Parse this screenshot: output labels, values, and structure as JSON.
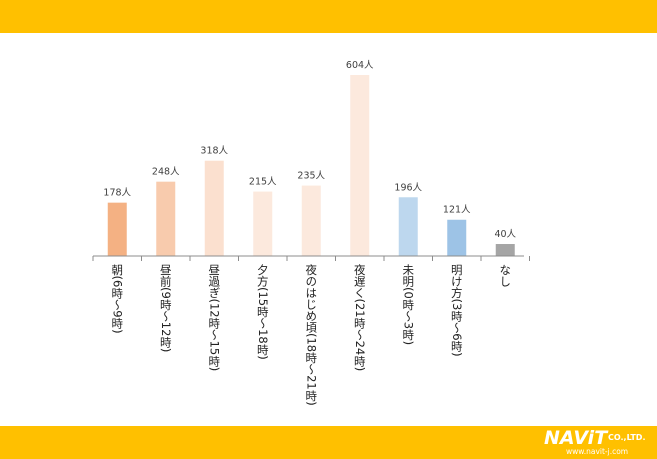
{
  "chart_data": {
    "type": "bar",
    "categories": [
      "朝(6時〜9時)",
      "昼前(9時〜12時)",
      "昼過ぎ(12時〜15時)",
      "夕方(15時〜18時)",
      "夜のはじめ頃(18時〜21時)",
      "夜遅く(21時〜24時)",
      "未明(0時〜3時)",
      "明け方(3時〜6時)",
      "なし"
    ],
    "values": [
      178,
      248,
      318,
      215,
      235,
      604,
      196,
      121,
      40
    ],
    "value_labels": [
      "178人",
      "248人",
      "318人",
      "215人",
      "235人",
      "604人",
      "196人",
      "121人",
      "40人"
    ],
    "colors": [
      "#F4B183",
      "#F8CBAD",
      "#FBE0CF",
      "#FCE9DD",
      "#FCE9DD",
      "#FCE9DD",
      "#BDD7EE",
      "#9DC3E6",
      "#A5A5A5"
    ],
    "title": "",
    "xlabel": "",
    "ylabel": "",
    "ylim": [
      0,
      640
    ],
    "grid": false
  },
  "logo": {
    "main": "NAViT",
    "suffix": "CO.,LTD.",
    "url": "www.navit-j.com"
  }
}
